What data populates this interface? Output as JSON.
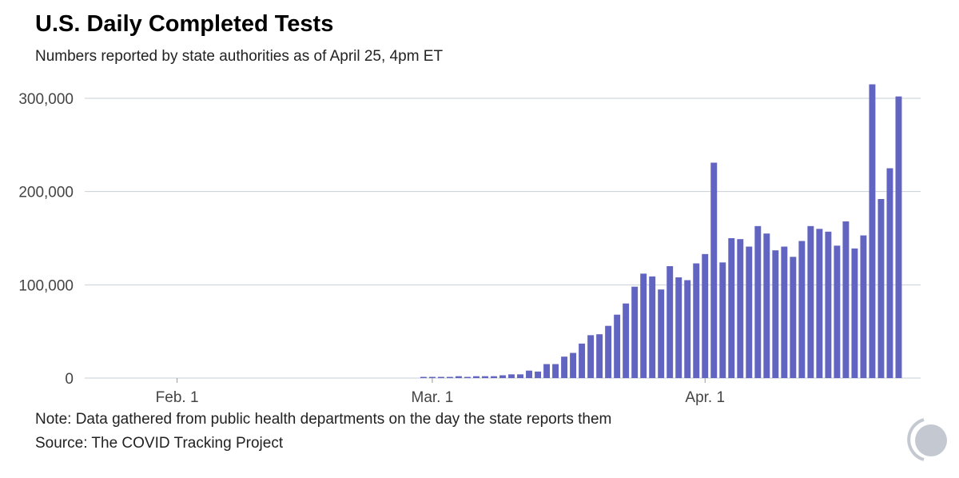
{
  "header": {
    "title": "U.S. Daily Completed Tests",
    "subtitle": "Numbers reported by state authorities as of April 25, 4pm ET"
  },
  "footer": {
    "note": "Note: Data gathered from public health departments on the day the state reports them",
    "source": "Source: The COVID Tracking Project"
  },
  "logo": {
    "icon": "covid-tracking-project-logo-icon",
    "color": "#c4c9d1"
  },
  "chart_data": {
    "type": "bar",
    "bar_color": "#6264c2",
    "grid": true,
    "grid_color": "#c8cfd6",
    "ylim": [
      0,
      300000
    ],
    "yticks": [
      {
        "value": 0,
        "label": "0"
      },
      {
        "value": 100000,
        "label": "100,000"
      },
      {
        "value": 200000,
        "label": "200,000"
      },
      {
        "value": 300000,
        "label": "300,000"
      }
    ],
    "xticks": [
      {
        "date": "2020-02-01",
        "label": "Feb. 1"
      },
      {
        "date": "2020-03-01",
        "label": "Mar. 1"
      },
      {
        "date": "2020-04-01",
        "label": "Apr. 1"
      }
    ],
    "x_domain": [
      "2020-01-22",
      "2020-04-25"
    ],
    "series": [
      {
        "x": [
          "2020-01-22",
          "2020-01-23",
          "2020-01-24",
          "2020-01-25",
          "2020-01-26",
          "2020-01-27",
          "2020-01-28",
          "2020-01-29",
          "2020-01-30",
          "2020-01-31",
          "2020-02-01",
          "2020-02-02",
          "2020-02-03",
          "2020-02-04",
          "2020-02-05",
          "2020-02-06",
          "2020-02-07",
          "2020-02-08",
          "2020-02-09",
          "2020-02-10",
          "2020-02-11",
          "2020-02-12",
          "2020-02-13",
          "2020-02-14",
          "2020-02-15",
          "2020-02-16",
          "2020-02-17",
          "2020-02-18",
          "2020-02-19",
          "2020-02-20",
          "2020-02-21",
          "2020-02-22",
          "2020-02-23",
          "2020-02-24",
          "2020-02-25",
          "2020-02-26",
          "2020-02-27",
          "2020-02-28",
          "2020-02-29",
          "2020-03-01",
          "2020-03-02",
          "2020-03-03",
          "2020-03-04",
          "2020-03-05",
          "2020-03-06",
          "2020-03-07",
          "2020-03-08",
          "2020-03-09",
          "2020-03-10",
          "2020-03-11",
          "2020-03-12",
          "2020-03-13",
          "2020-03-14",
          "2020-03-15",
          "2020-03-16",
          "2020-03-17",
          "2020-03-18",
          "2020-03-19",
          "2020-03-20",
          "2020-03-21",
          "2020-03-22",
          "2020-03-23",
          "2020-03-24",
          "2020-03-25",
          "2020-03-26",
          "2020-03-27",
          "2020-03-28",
          "2020-03-29",
          "2020-03-30",
          "2020-03-31",
          "2020-04-01",
          "2020-04-02",
          "2020-04-03",
          "2020-04-04",
          "2020-04-05",
          "2020-04-06",
          "2020-04-07",
          "2020-04-08",
          "2020-04-09",
          "2020-04-10",
          "2020-04-11",
          "2020-04-12",
          "2020-04-13",
          "2020-04-14",
          "2020-04-15",
          "2020-04-16",
          "2020-04-17",
          "2020-04-18",
          "2020-04-19",
          "2020-04-20",
          "2020-04-21",
          "2020-04-22",
          "2020-04-23",
          "2020-04-24",
          "2020-04-25"
        ],
        "values": [
          0,
          0,
          0,
          0,
          0,
          0,
          0,
          0,
          0,
          0,
          0,
          0,
          0,
          0,
          0,
          0,
          0,
          0,
          0,
          0,
          0,
          0,
          0,
          0,
          0,
          0,
          0,
          0,
          0,
          0,
          0,
          0,
          0,
          0,
          0,
          0,
          0,
          0,
          1000,
          1000,
          1000,
          1000,
          2000,
          1000,
          2000,
          2000,
          2000,
          3000,
          4000,
          4000,
          8000,
          7000,
          15000,
          15000,
          23000,
          27000,
          37000,
          46000,
          47000,
          56000,
          68000,
          80000,
          98000,
          112000,
          109000,
          95000,
          120000,
          108000,
          105000,
          123000,
          133000,
          231000,
          124000,
          150000,
          149000,
          141000,
          163000,
          155000,
          137000,
          141000,
          130000,
          147000,
          163000,
          160000,
          157000,
          142000,
          168000,
          139000,
          153000,
          315000,
          192000,
          225000,
          302000,
          0,
          0
        ]
      }
    ]
  }
}
